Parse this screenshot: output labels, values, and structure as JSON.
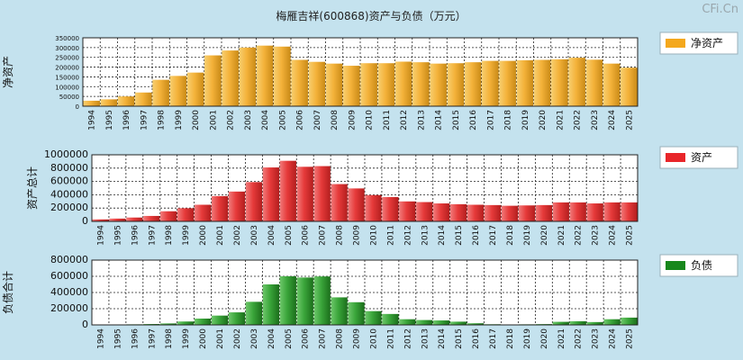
{
  "title": "梅雁吉祥(600868)资产与负债（万元）",
  "watermark": "CFi.Cn",
  "chart_data": [
    {
      "type": "bar",
      "ylabel": "净资产",
      "legend": "净资产",
      "color": "#f4a81c",
      "ylim": [
        0,
        350000
      ],
      "yticks": [
        0,
        50000,
        100000,
        150000,
        200000,
        250000,
        300000,
        350000
      ],
      "categories": [
        "1994",
        "1995",
        "1996",
        "1997",
        "1998",
        "1999",
        "2000",
        "2001",
        "2002",
        "2003",
        "2004",
        "2005",
        "2006",
        "2007",
        "2008",
        "2009",
        "2010",
        "2011",
        "2012",
        "2013",
        "2014",
        "2015",
        "2016",
        "2017",
        "2018",
        "2019",
        "2020",
        "2021",
        "2022",
        "2023",
        "2024",
        "2025"
      ],
      "values": [
        28000,
        35000,
        50000,
        70000,
        135000,
        155000,
        172000,
        260000,
        285000,
        300000,
        310000,
        305000,
        237000,
        227000,
        218000,
        207000,
        220000,
        220000,
        228000,
        225000,
        218000,
        220000,
        225000,
        232000,
        232000,
        235000,
        237000,
        240000,
        248000,
        238000,
        218000,
        197000
      ]
    },
    {
      "type": "bar",
      "ylabel": "资产总计",
      "legend": "资产",
      "color": "#e8262a",
      "ylim": [
        0,
        1000000
      ],
      "yticks": [
        0,
        200000,
        400000,
        600000,
        800000,
        1000000
      ],
      "categories": [
        "1994",
        "1995",
        "1996",
        "1997",
        "1998",
        "1999",
        "2000",
        "2001",
        "2002",
        "2003",
        "2004",
        "2005",
        "2006",
        "2007",
        "2008",
        "2009",
        "2010",
        "2011",
        "2012",
        "2013",
        "2014",
        "2015",
        "2016",
        "2017",
        "2018",
        "2019",
        "2020",
        "2021",
        "2022",
        "2023",
        "2024",
        "2025"
      ],
      "values": [
        30000,
        42000,
        58000,
        82000,
        152000,
        198000,
        250000,
        380000,
        448000,
        590000,
        810000,
        910000,
        820000,
        830000,
        560000,
        495000,
        395000,
        365000,
        300000,
        290000,
        270000,
        258000,
        250000,
        245000,
        235000,
        240000,
        245000,
        285000,
        285000,
        270000,
        285000,
        285000
      ]
    },
    {
      "type": "bar",
      "ylabel": "负债合计",
      "legend": "负债",
      "color": "#17871c",
      "ylim": [
        0,
        800000
      ],
      "yticks": [
        0,
        200000,
        400000,
        600000,
        800000
      ],
      "categories": [
        "1994",
        "1995",
        "1996",
        "1997",
        "1998",
        "1999",
        "2000",
        "2001",
        "2002",
        "2003",
        "2004",
        "2005",
        "2006",
        "2007",
        "2008",
        "2009",
        "2010",
        "2011",
        "2012",
        "2013",
        "2014",
        "2015",
        "2016",
        "2017",
        "2018",
        "2019",
        "2020",
        "2021",
        "2022",
        "2023",
        "2024",
        "2025"
      ],
      "values": [
        3000,
        5000,
        7000,
        11000,
        18000,
        42000,
        78000,
        115000,
        155000,
        285000,
        500000,
        600000,
        585000,
        598000,
        340000,
        280000,
        170000,
        135000,
        70000,
        60000,
        55000,
        40000,
        20000,
        8000,
        5000,
        7000,
        10000,
        38000,
        45000,
        35000,
        70000,
        90000
      ]
    }
  ]
}
